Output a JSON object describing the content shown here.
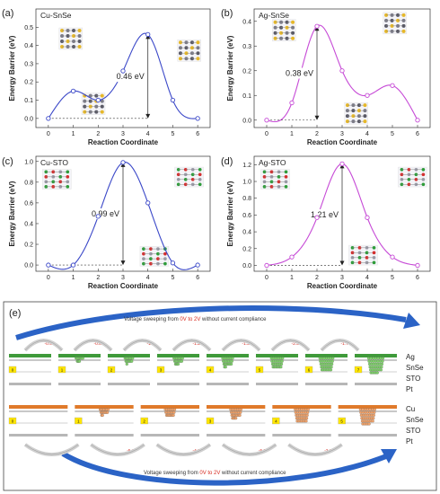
{
  "chart_data": [
    {
      "type": "line",
      "panel_label": "(a)",
      "title": "Cu-SnSe",
      "xlabel": "Reaction Coordinate",
      "ylabel": "Energy Barrier (eV)",
      "xlim": [
        -0.5,
        6.5
      ],
      "ylim": [
        -0.05,
        0.6
      ],
      "xticks": [
        "0",
        "1",
        "2",
        "3",
        "4",
        "5",
        "6"
      ],
      "yticks": [
        "0.0",
        "0.1",
        "0.2",
        "0.3",
        "0.4",
        "0.5"
      ],
      "color": "#3b48c8",
      "x": [
        0,
        1,
        2,
        3,
        4,
        5,
        6
      ],
      "y": [
        0.0,
        0.15,
        0.1,
        0.26,
        0.46,
        0.1,
        0.0
      ],
      "annotation": "0.46 eV",
      "arrow_x": 4,
      "arrow_from": 0.0,
      "arrow_to": 0.46,
      "yformat": 1
    },
    {
      "type": "line",
      "panel_label": "(b)",
      "title": "Ag-SnSe",
      "xlabel": "Reaction Coordinate",
      "ylabel": "Energy Barrier (eV)",
      "xlim": [
        -0.5,
        6.5
      ],
      "ylim": [
        -0.03,
        0.45
      ],
      "xticks": [
        "0",
        "1",
        "2",
        "3",
        "4",
        "5",
        "6"
      ],
      "yticks": [
        "0.0",
        "0.1",
        "0.2",
        "0.3",
        "0.4"
      ],
      "color": "#c64ad6",
      "x": [
        0,
        1,
        2,
        3,
        4,
        5,
        6
      ],
      "y": [
        0.0,
        0.07,
        0.38,
        0.2,
        0.1,
        0.14,
        0.0
      ],
      "annotation": "0.38 eV",
      "arrow_x": 2,
      "arrow_from": 0.0,
      "arrow_to": 0.38,
      "yformat": 1
    },
    {
      "type": "line",
      "panel_label": "(c)",
      "title": "Cu-STO",
      "xlabel": "Reaction Coordinate",
      "ylabel": "Energy Barrier (eV)",
      "xlim": [
        -0.5,
        6.5
      ],
      "ylim": [
        -0.06,
        1.05
      ],
      "xticks": [
        "0",
        "1",
        "2",
        "3",
        "4",
        "5",
        "6"
      ],
      "yticks": [
        "0.0",
        "0.2",
        "0.4",
        "0.6",
        "0.8",
        "1.0"
      ],
      "color": "#3b48c8",
      "x": [
        0,
        1,
        2,
        3,
        4,
        5,
        6
      ],
      "y": [
        0.0,
        0.0,
        0.47,
        0.99,
        0.6,
        0.02,
        0.0
      ],
      "annotation": "0.99 eV",
      "arrow_x": 3,
      "arrow_from": 0.0,
      "arrow_to": 0.99,
      "yformat": 1
    },
    {
      "type": "line",
      "panel_label": "(d)",
      "title": "Ag-STO",
      "xlabel": "Reaction Coordinate",
      "ylabel": "Energy Barrier (eV)",
      "xlim": [
        -0.5,
        6.5
      ],
      "ylim": [
        -0.07,
        1.3
      ],
      "xticks": [
        "0",
        "1",
        "2",
        "3",
        "4",
        "5",
        "6"
      ],
      "yticks": [
        "0.0",
        "0.2",
        "0.4",
        "0.6",
        "0.8",
        "1.0",
        "1.2"
      ],
      "color": "#c64ad6",
      "x": [
        0,
        1,
        2,
        3,
        4,
        5,
        6
      ],
      "y": [
        0.0,
        0.1,
        0.57,
        1.21,
        0.57,
        0.1,
        0.0
      ],
      "annotation": "1.21 eV",
      "arrow_x": 3,
      "arrow_from": 0.0,
      "arrow_to": 1.21,
      "yformat": 1
    }
  ],
  "panel_e": {
    "label": "(e)",
    "sweep_top": [
      "Voltage sweeping from ",
      "0V to 2V",
      " without current compliance"
    ],
    "sweep_bottom": [
      "Voltage sweeping from ",
      "0V to 2V",
      " without current compliance"
    ],
    "ag_stages": [
      "0",
      "1",
      "2",
      "3",
      "4",
      "5",
      "6",
      "7"
    ],
    "ag_voltages": [
      "-0.4V",
      "-0.8V",
      "-1V",
      "-1.2V",
      "-1.3V",
      "-2.5V",
      "-1.7V"
    ],
    "ag_growth": [
      0,
      0.15,
      0.25,
      0.35,
      0.5,
      0.65,
      0.85,
      1.0
    ],
    "cu_stages": [
      "0",
      "1",
      "2",
      "3",
      "4",
      "5"
    ],
    "cu_voltages": [
      "-4V",
      "-5.1V",
      "-4.3V",
      "-5.5V",
      "-2.2V"
    ],
    "cu_growth": [
      0,
      0.3,
      0.45,
      0.55,
      0.85,
      1.0
    ],
    "ag_layers": [
      "Ag",
      "SnSe",
      "STO",
      "Pt"
    ],
    "cu_layers": [
      "Cu",
      "SnSe",
      "STO",
      "Pt"
    ],
    "colors": {
      "ag": "#3f9a3a",
      "agDot": "#7fd16b",
      "cu": "#e07a2a",
      "cuDot": "#f2a36a",
      "arrow": "#2b63c6",
      "box": "#ffe600"
    }
  }
}
